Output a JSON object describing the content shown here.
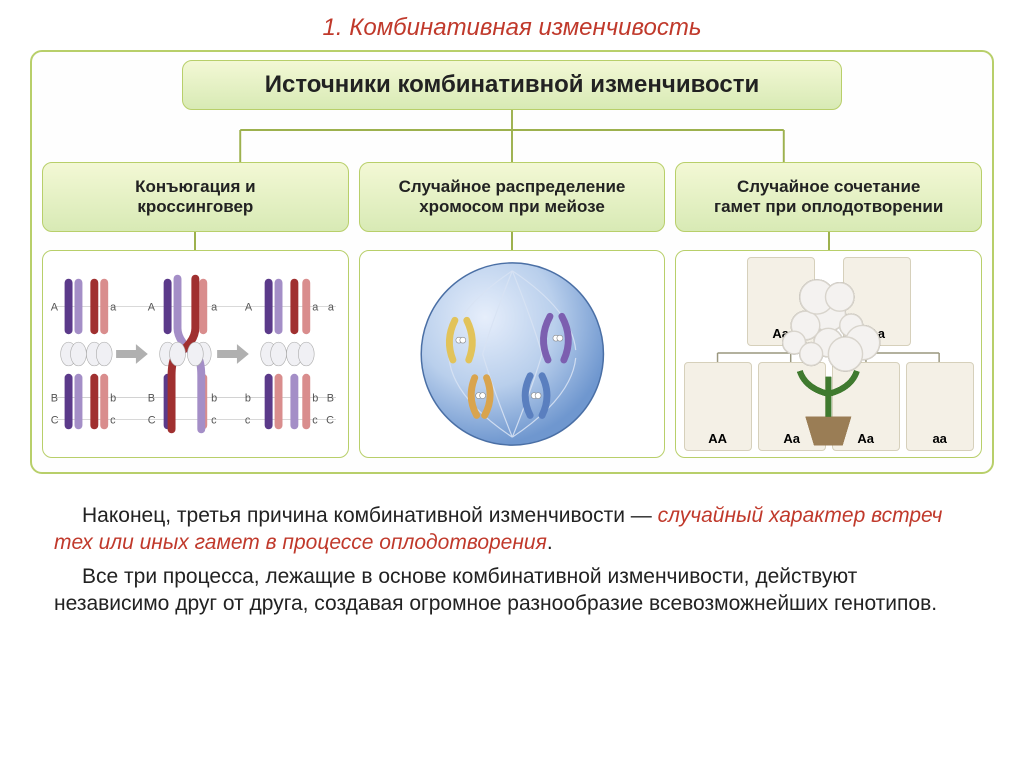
{
  "slide_title": "1. Комбинативная изменчивость",
  "diagram": {
    "header": "Источники комбинативной изменчивости",
    "header_bg_from": "#f3f8d5",
    "header_bg_to": "#d8eab5",
    "border_color": "#b8cf6a",
    "line_color": "#9db14e",
    "fontsize_header": 24,
    "fontsize_branch": 17,
    "branches": [
      {
        "label": "Конъюгация и\nкроссинговер",
        "kind": "crossover"
      },
      {
        "label": "Случайное распределение\nхромосом при мейозе",
        "kind": "cell"
      },
      {
        "label": "Случайное сочетание\nгамет при оплодотворении",
        "kind": "punnett"
      }
    ]
  },
  "crossover": {
    "colors": {
      "purple_dark": "#5b3a8a",
      "purple_light": "#a48ec7",
      "red_dark": "#a03030",
      "red_light": "#d98d8d",
      "centromere": "#f0f0f4",
      "label": "#555555",
      "arrow": "#b0b0b0"
    },
    "loci_upper": [
      "A",
      "a"
    ],
    "loci_lower": [
      "B",
      "C",
      "b",
      "c"
    ],
    "stage_gap": 96
  },
  "cell": {
    "bg_gradient_from": "#cfe0f4",
    "bg_gradient_to": "#7aa3d6",
    "outline": "#4a6fa5",
    "chrom_colors": [
      "#e2c35a",
      "#7c5fb0",
      "#d9a44e",
      "#5a7fbf"
    ]
  },
  "punnett": {
    "parent_genotype": "Aa",
    "parents": [
      {
        "genotype": "Aa",
        "color": "#e66fa7"
      },
      {
        "genotype": "Aa",
        "color": "#e66fa7"
      }
    ],
    "offspring": [
      {
        "genotype": "AA",
        "color": "#d32f52"
      },
      {
        "genotype": "Aa",
        "color": "#e66fa7"
      },
      {
        "genotype": "Aa",
        "color": "#e66fa7"
      },
      {
        "genotype": "aa",
        "color": "#f4f2f0"
      }
    ],
    "pot_color": "#9a7d55",
    "stem_color": "#3f7a2f",
    "card_bg": "#f4f0e6",
    "card_border": "#d6d0bb",
    "cross_symbol": "×"
  },
  "body": {
    "p1_a": "Наконец, третья причина комбинативной изменчивости — ",
    "p1_b": "случайный характер встреч тех или иных гамет в процессе оплодотворения",
    "p1_c": ".",
    "p2": "Все три процесса, лежащие в основе комбинативной изменчивости, действуют независимо друг от друга, создавая огромное разнообразие всевозможнейших генотипов.",
    "text_color": "#222222",
    "emph_color": "#c0392b",
    "fontsize": 21
  }
}
